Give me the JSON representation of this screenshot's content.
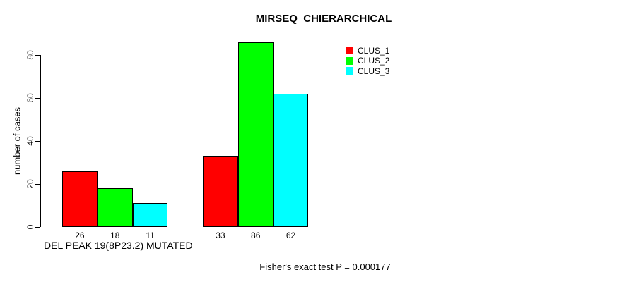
{
  "title": "MIRSEQ_CHIERARCHICAL",
  "y_axis": {
    "label": "number of cases",
    "ticks": [
      0,
      20,
      40,
      60,
      80
    ]
  },
  "x_axis": {
    "label": "DEL PEAK 19(8P23.2) MUTATED"
  },
  "footer": "Fisher's exact test P = 0.000177",
  "legend": {
    "items": [
      {
        "label": "CLUS_1",
        "color": "#ff0000"
      },
      {
        "label": "CLUS_2",
        "color": "#00ff00"
      },
      {
        "label": "CLUS_3",
        "color": "#00ffff"
      }
    ]
  },
  "chart_data": {
    "type": "bar",
    "title": "MIRSEQ_CHIERARCHICAL",
    "xlabel": "DEL PEAK 19(8P23.2) MUTATED",
    "ylabel": "number of cases",
    "annotation": "Fisher's exact test P = 0.000177",
    "categories": [
      "",
      ""
    ],
    "series": [
      {
        "name": "CLUS_1",
        "color": "#ff0000",
        "values": [
          26,
          33
        ]
      },
      {
        "name": "CLUS_2",
        "color": "#00ff00",
        "values": [
          18,
          86
        ]
      },
      {
        "name": "CLUS_3",
        "color": "#00ffff",
        "values": [
          11,
          62
        ]
      }
    ],
    "bar_value_labels": [
      [
        26,
        18,
        11
      ],
      [
        33,
        86,
        62
      ]
    ],
    "yticks": [
      0,
      20,
      40,
      60,
      80
    ],
    "ylim": [
      0,
      80
    ],
    "grid": false,
    "legend_position": "top-right",
    "legend_entries": [
      "CLUS_1",
      "CLUS_2",
      "CLUS_3"
    ]
  }
}
